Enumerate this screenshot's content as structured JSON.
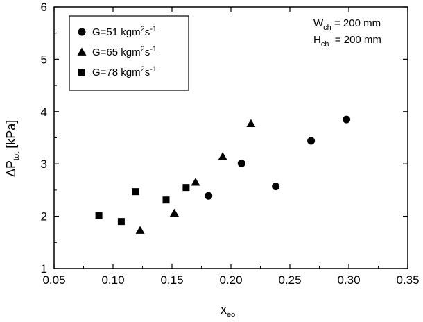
{
  "chart_data": {
    "type": "scatter",
    "xlabel": {
      "main": "x",
      "sub": "eo"
    },
    "ylabel": {
      "pre": "ΔP",
      "sub": "tot",
      "post": " [kPa]"
    },
    "xlim": [
      0.05,
      0.35
    ],
    "ylim": [
      1,
      6
    ],
    "xticks": [
      "0.05",
      "0.10",
      "0.15",
      "0.20",
      "0.25",
      "0.30",
      "0.35"
    ],
    "yticks": [
      "1",
      "2",
      "3",
      "4",
      "5",
      "6"
    ],
    "grid": false,
    "legend_position": "top-left",
    "series": [
      {
        "name": {
          "main": "G=51 kgm",
          "sup1": "2",
          "mid": "s",
          "sup2": "-1"
        },
        "marker": "circle",
        "color": "#000000",
        "x": [
          0.181,
          0.209,
          0.238,
          0.268,
          0.298
        ],
        "y": [
          2.39,
          3.01,
          2.57,
          3.44,
          3.85
        ]
      },
      {
        "name": {
          "main": "G=65 kgm",
          "sup1": "2",
          "mid": "s",
          "sup2": "-1"
        },
        "marker": "triangle",
        "color": "#000000",
        "x": [
          0.123,
          0.152,
          0.17,
          0.193,
          0.217
        ],
        "y": [
          1.73,
          2.06,
          2.65,
          3.14,
          3.77
        ]
      },
      {
        "name": {
          "main": "G=78 kgm",
          "sup1": "2",
          "mid": "s",
          "sup2": "-1"
        },
        "marker": "square",
        "color": "#000000",
        "x": [
          0.088,
          0.107,
          0.119,
          0.145,
          0.162
        ],
        "y": [
          2.01,
          1.9,
          2.47,
          2.31,
          2.55
        ]
      }
    ],
    "annotations": [
      {
        "main": "W",
        "sub": "ch",
        "rest": " = 200 mm"
      },
      {
        "main": "H",
        "sub": "ch",
        "rest": "  = 200 mm"
      }
    ]
  }
}
